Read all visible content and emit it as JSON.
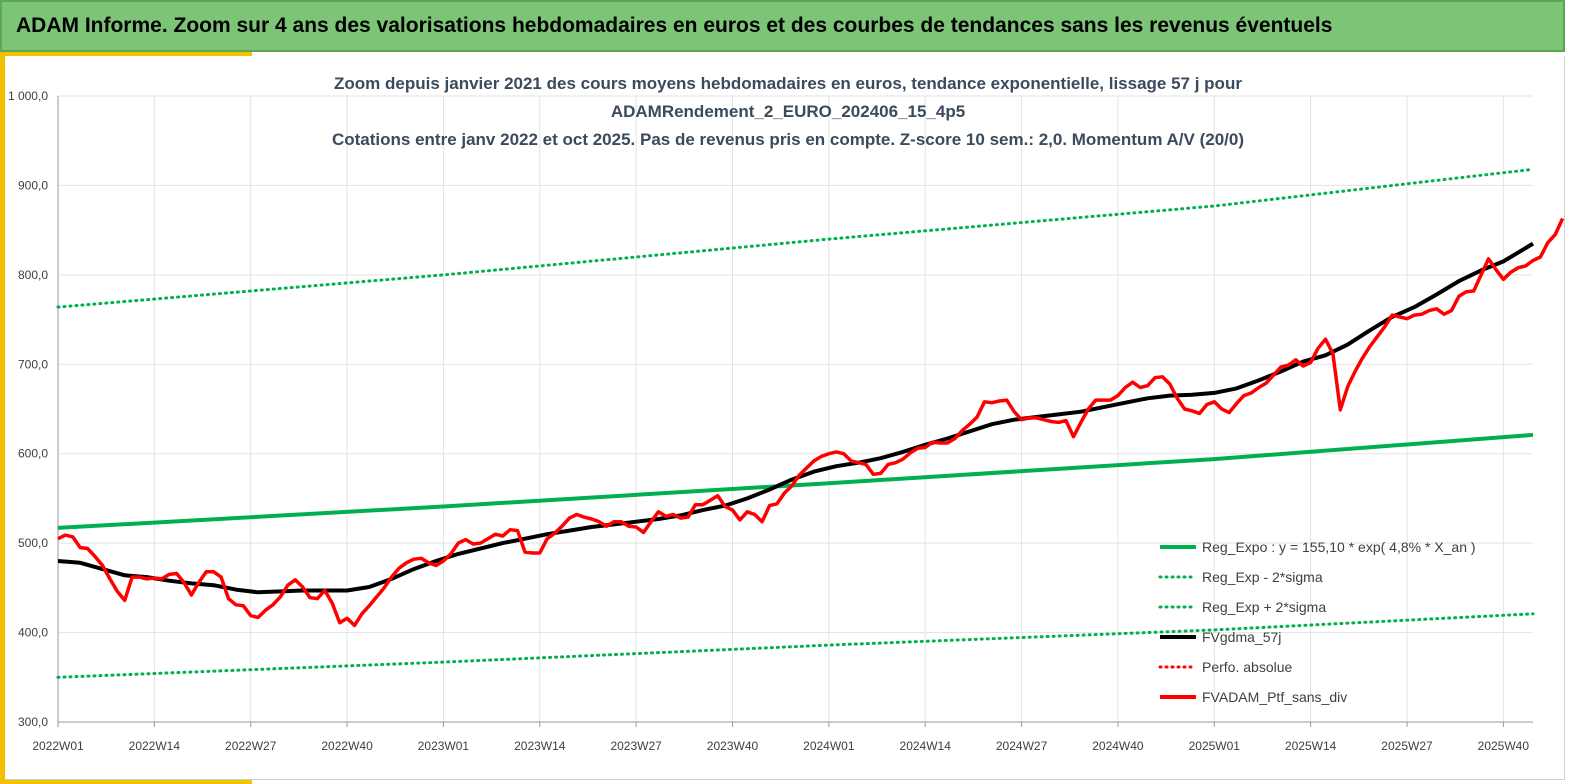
{
  "banner": {
    "title": "ADAM Informe. Zoom sur 4 ans des valorisations hebdomadaires en euros et des courbes de tendances sans les revenus éventuels"
  },
  "colors": {
    "banner_bg": "#7cc576",
    "accent": "#f2c200",
    "trend_green": "#00b050",
    "smoothed_black": "#000000",
    "portfolio_red": "#ff0000",
    "title_text": "#3b4a5c"
  },
  "chart_data": {
    "type": "line",
    "title_lines": [
      "Zoom depuis janvier 2021 des cours moyens hebdomadaires  en euros, tendance exponentielle, lissage 57 j pour",
      "ADAMRendement_2_EURO_202406_15_4p5",
      "Cotations  entre janv 2022 et oct 2025. Pas de revenus pris en compte. Z-score 10 sem.: 2,0. Momentum A/V (20/0)"
    ],
    "xlabel": "",
    "ylabel": "",
    "x_range": [
      0,
      199
    ],
    "x_ticks": [
      {
        "x": 0,
        "label": "2022W01"
      },
      {
        "x": 13,
        "label": "2022W14"
      },
      {
        "x": 26,
        "label": "2022W27"
      },
      {
        "x": 39,
        "label": "2022W40"
      },
      {
        "x": 52,
        "label": "2023W01"
      },
      {
        "x": 65,
        "label": "2023W14"
      },
      {
        "x": 78,
        "label": "2023W27"
      },
      {
        "x": 91,
        "label": "2023W40"
      },
      {
        "x": 104,
        "label": "2024W01"
      },
      {
        "x": 117,
        "label": "2024W14"
      },
      {
        "x": 130,
        "label": "2024W27"
      },
      {
        "x": 143,
        "label": "2024W40"
      },
      {
        "x": 156,
        "label": "2025W01"
      },
      {
        "x": 169,
        "label": "2025W14"
      },
      {
        "x": 182,
        "label": "2025W27"
      },
      {
        "x": 195,
        "label": "2025W40"
      }
    ],
    "ylim": [
      300,
      1000
    ],
    "y_ticks": [
      {
        "value": 300,
        "label": "300,0"
      },
      {
        "value": 400,
        "label": "400,0"
      },
      {
        "value": 500,
        "label": "500,0"
      },
      {
        "value": 600,
        "label": "600,0"
      },
      {
        "value": 700,
        "label": "700,0"
      },
      {
        "value": 800,
        "label": "800,0"
      },
      {
        "value": 900,
        "label": "900,0"
      },
      {
        "value": 1000,
        "label": "1 000,0"
      }
    ],
    "grid": true,
    "legend_position": "bottom-right",
    "series": [
      {
        "name": "Reg_Expo : y = 155,10 * exp( 4,8% *  X_an )",
        "style": "solid",
        "color": "#00b050",
        "points": [
          [
            0,
            517
          ],
          [
            52,
            541
          ],
          [
            104,
            567
          ],
          [
            156,
            594
          ],
          [
            199,
            621
          ]
        ]
      },
      {
        "name": "Reg_Exp - 2*sigma",
        "style": "dotted",
        "color": "#00b050",
        "points": [
          [
            0,
            350
          ],
          [
            52,
            367
          ],
          [
            104,
            386
          ],
          [
            156,
            403
          ],
          [
            199,
            421
          ]
        ]
      },
      {
        "name": "Reg_Exp + 2*sigma",
        "style": "dotted",
        "color": "#00b050",
        "points": [
          [
            0,
            764
          ],
          [
            52,
            800
          ],
          [
            104,
            840
          ],
          [
            156,
            877
          ],
          [
            199,
            918
          ]
        ]
      },
      {
        "name": "FVgdma_57j",
        "style": "solid",
        "color": "#000000",
        "points": [
          [
            0,
            480
          ],
          [
            3,
            478
          ],
          [
            6,
            471
          ],
          [
            9,
            464
          ],
          [
            12,
            462
          ],
          [
            15,
            458
          ],
          [
            18,
            455
          ],
          [
            21,
            453
          ],
          [
            24,
            448
          ],
          [
            27,
            445
          ],
          [
            30,
            446
          ],
          [
            33,
            447
          ],
          [
            36,
            447
          ],
          [
            39,
            447
          ],
          [
            42,
            451
          ],
          [
            45,
            460
          ],
          [
            48,
            471
          ],
          [
            51,
            480
          ],
          [
            54,
            488
          ],
          [
            57,
            494
          ],
          [
            60,
            500
          ],
          [
            63,
            505
          ],
          [
            66,
            510
          ],
          [
            69,
            514
          ],
          [
            72,
            518
          ],
          [
            75,
            521
          ],
          [
            78,
            524
          ],
          [
            81,
            527
          ],
          [
            84,
            531
          ],
          [
            87,
            537
          ],
          [
            90,
            542
          ],
          [
            93,
            550
          ],
          [
            96,
            560
          ],
          [
            99,
            571
          ],
          [
            102,
            580
          ],
          [
            105,
            586
          ],
          [
            108,
            590
          ],
          [
            111,
            595
          ],
          [
            114,
            602
          ],
          [
            117,
            610
          ],
          [
            120,
            617
          ],
          [
            123,
            625
          ],
          [
            126,
            633
          ],
          [
            129,
            638
          ],
          [
            132,
            641
          ],
          [
            135,
            644
          ],
          [
            138,
            647
          ],
          [
            141,
            652
          ],
          [
            144,
            657
          ],
          [
            147,
            662
          ],
          [
            150,
            665
          ],
          [
            153,
            666
          ],
          [
            156,
            668
          ],
          [
            159,
            673
          ],
          [
            162,
            682
          ],
          [
            165,
            692
          ],
          [
            168,
            703
          ],
          [
            171,
            710
          ],
          [
            174,
            722
          ],
          [
            177,
            738
          ],
          [
            180,
            753
          ],
          [
            183,
            764
          ],
          [
            186,
            778
          ],
          [
            189,
            793
          ],
          [
            192,
            805
          ],
          [
            195,
            815
          ],
          [
            199,
            835
          ]
        ]
      },
      {
        "name": "Perfo. absolue",
        "style": "dotted",
        "color": "#ff0000",
        "points": []
      },
      {
        "name": "FVADAM_Ptf_sans_div",
        "style": "solid",
        "color": "#ff0000",
        "points": [
          [
            0,
            505
          ],
          [
            1,
            509
          ],
          [
            2,
            507
          ],
          [
            3,
            495
          ],
          [
            4,
            494
          ],
          [
            5,
            485
          ],
          [
            6,
            475
          ],
          [
            7,
            460
          ],
          [
            8,
            446
          ],
          [
            9,
            436
          ],
          [
            10,
            462
          ],
          [
            11,
            462
          ],
          [
            12,
            460
          ],
          [
            13,
            461
          ],
          [
            14,
            460
          ],
          [
            15,
            465
          ],
          [
            16,
            466
          ],
          [
            17,
            456
          ],
          [
            18,
            442
          ],
          [
            19,
            456
          ],
          [
            20,
            468
          ],
          [
            21,
            468
          ],
          [
            22,
            462
          ],
          [
            23,
            438
          ],
          [
            24,
            431
          ],
          [
            25,
            430
          ],
          [
            26,
            419
          ],
          [
            27,
            417
          ],
          [
            28,
            425
          ],
          [
            29,
            431
          ],
          [
            30,
            440
          ],
          [
            31,
            453
          ],
          [
            32,
            459
          ],
          [
            33,
            451
          ],
          [
            34,
            439
          ],
          [
            35,
            438
          ],
          [
            36,
            447
          ],
          [
            37,
            433
          ],
          [
            38,
            411
          ],
          [
            39,
            416
          ],
          [
            40,
            408
          ],
          [
            41,
            421
          ],
          [
            42,
            430
          ],
          [
            43,
            440
          ],
          [
            44,
            450
          ],
          [
            45,
            462
          ],
          [
            46,
            472
          ],
          [
            47,
            478
          ],
          [
            48,
            482
          ],
          [
            49,
            483
          ],
          [
            50,
            478
          ],
          [
            51,
            475
          ],
          [
            52,
            480
          ],
          [
            53,
            488
          ],
          [
            54,
            500
          ],
          [
            55,
            504
          ],
          [
            56,
            499
          ],
          [
            57,
            500
          ],
          [
            58,
            505
          ],
          [
            59,
            510
          ],
          [
            60,
            508
          ],
          [
            61,
            515
          ],
          [
            62,
            514
          ],
          [
            63,
            490
          ],
          [
            64,
            489
          ],
          [
            65,
            489
          ],
          [
            66,
            505
          ],
          [
            67,
            511
          ],
          [
            68,
            519
          ],
          [
            69,
            528
          ],
          [
            70,
            532
          ],
          [
            71,
            529
          ],
          [
            72,
            527
          ],
          [
            73,
            524
          ],
          [
            74,
            519
          ],
          [
            75,
            524
          ],
          [
            76,
            524
          ],
          [
            77,
            519
          ],
          [
            78,
            518
          ],
          [
            79,
            512
          ],
          [
            80,
            524
          ],
          [
            81,
            535
          ],
          [
            82,
            530
          ],
          [
            83,
            532
          ],
          [
            84,
            528
          ],
          [
            85,
            529
          ],
          [
            86,
            543
          ],
          [
            87,
            543
          ],
          [
            88,
            548
          ],
          [
            89,
            553
          ],
          [
            90,
            541
          ],
          [
            91,
            537
          ],
          [
            92,
            526
          ],
          [
            93,
            535
          ],
          [
            94,
            532
          ],
          [
            95,
            524
          ],
          [
            96,
            542
          ],
          [
            97,
            544
          ],
          [
            98,
            556
          ],
          [
            99,
            564
          ],
          [
            100,
            576
          ],
          [
            101,
            584
          ],
          [
            102,
            592
          ],
          [
            103,
            597
          ],
          [
            104,
            600
          ],
          [
            105,
            602
          ],
          [
            106,
            600
          ],
          [
            107,
            592
          ],
          [
            108,
            590
          ],
          [
            109,
            588
          ],
          [
            110,
            577
          ],
          [
            111,
            578
          ],
          [
            112,
            588
          ],
          [
            113,
            590
          ],
          [
            114,
            594
          ],
          [
            115,
            601
          ],
          [
            116,
            606
          ],
          [
            117,
            607
          ],
          [
            118,
            613
          ],
          [
            119,
            612
          ],
          [
            120,
            612
          ],
          [
            121,
            617
          ],
          [
            122,
            626
          ],
          [
            123,
            633
          ],
          [
            124,
            641
          ],
          [
            125,
            658
          ],
          [
            126,
            657
          ],
          [
            127,
            659
          ],
          [
            128,
            660
          ],
          [
            129,
            647
          ],
          [
            130,
            638
          ],
          [
            131,
            640
          ],
          [
            132,
            640
          ],
          [
            133,
            638
          ],
          [
            134,
            636
          ],
          [
            135,
            635
          ],
          [
            136,
            637
          ],
          [
            137,
            619
          ],
          [
            138,
            635
          ],
          [
            139,
            650
          ],
          [
            140,
            660
          ],
          [
            141,
            660
          ],
          [
            142,
            660
          ],
          [
            143,
            665
          ],
          [
            144,
            674
          ],
          [
            145,
            680
          ],
          [
            146,
            674
          ],
          [
            147,
            676
          ],
          [
            148,
            685
          ],
          [
            149,
            686
          ],
          [
            150,
            678
          ],
          [
            151,
            662
          ],
          [
            152,
            650
          ],
          [
            153,
            648
          ],
          [
            154,
            645
          ],
          [
            155,
            655
          ],
          [
            156,
            658
          ],
          [
            157,
            650
          ],
          [
            158,
            646
          ],
          [
            159,
            656
          ],
          [
            160,
            665
          ],
          [
            161,
            668
          ],
          [
            162,
            674
          ],
          [
            163,
            679
          ],
          [
            164,
            688
          ],
          [
            165,
            697
          ],
          [
            166,
            699
          ],
          [
            167,
            705
          ],
          [
            168,
            698
          ],
          [
            169,
            702
          ],
          [
            170,
            718
          ],
          [
            171,
            728
          ],
          [
            172,
            712
          ],
          [
            173,
            649
          ],
          [
            174,
            675
          ],
          [
            175,
            692
          ],
          [
            176,
            707
          ],
          [
            177,
            720
          ],
          [
            178,
            731
          ],
          [
            179,
            742
          ],
          [
            180,
            755
          ],
          [
            181,
            753
          ],
          [
            182,
            751
          ],
          [
            183,
            755
          ],
          [
            184,
            756
          ],
          [
            185,
            760
          ],
          [
            186,
            762
          ],
          [
            187,
            756
          ],
          [
            188,
            760
          ],
          [
            189,
            776
          ],
          [
            190,
            781
          ],
          [
            191,
            782
          ],
          [
            192,
            800
          ],
          [
            193,
            818
          ],
          [
            194,
            806
          ],
          [
            195,
            795
          ],
          [
            196,
            803
          ],
          [
            197,
            808
          ],
          [
            198,
            810
          ],
          [
            199,
            816
          ],
          [
            200,
            820
          ],
          [
            201,
            836
          ],
          [
            202,
            845
          ],
          [
            203,
            863
          ]
        ]
      }
    ]
  }
}
